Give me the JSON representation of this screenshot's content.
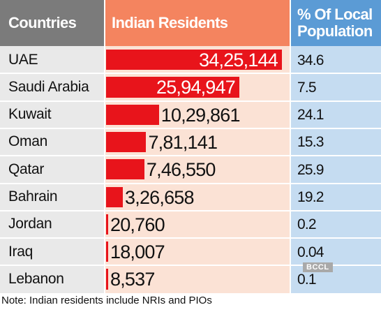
{
  "chart_data": {
    "type": "table",
    "columns": [
      "Countries",
      "Indian Residents",
      "% Of Local\nPopulation"
    ],
    "categories": [
      "UAE",
      "Saudi Arabia",
      "Kuwait",
      "Oman",
      "Qatar",
      "Bahrain",
      "Jordan",
      "Iraq",
      "Lebanon"
    ],
    "values": [
      3425144,
      2594947,
      1029861,
      781141,
      746550,
      326658,
      20760,
      18007,
      8537
    ],
    "value_labels": [
      "34,25,144",
      "25,94,947",
      "10,29,861",
      "7,81,141",
      "7,46,550",
      "3,26,658",
      "20,760",
      "18,007",
      "8,537"
    ],
    "percent_labels": [
      "34.6",
      "7.5",
      "24.1",
      "15.3",
      "25.9",
      "19.2",
      "0.2",
      "0.04",
      "0.1"
    ],
    "bar_color": "#e8141b",
    "note": "Note: Indian residents include NRIs and PIOs"
  },
  "watermark": "BCCL"
}
